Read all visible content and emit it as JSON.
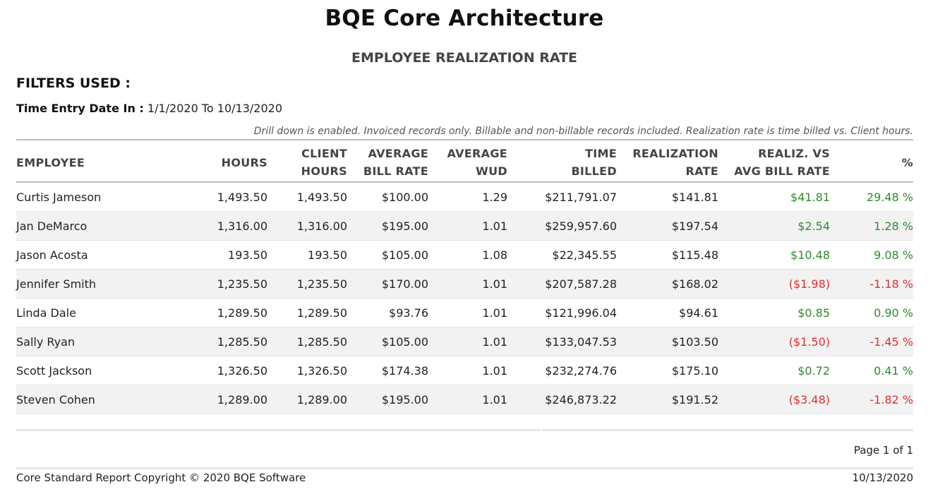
{
  "header": {
    "company": "BQE Core Architecture",
    "report_title": "EMPLOYEE REALIZATION RATE"
  },
  "filters": {
    "title": "FILTERS USED :",
    "label": "Time Entry Date In :",
    "value": "1/1/2020 To 10/13/2020"
  },
  "note": "Drill down is enabled. Invoiced records only. Billable and non-billable records included. Realization rate is time billed vs. Client hours.",
  "table": {
    "columns": [
      {
        "line1": "EMPLOYEE",
        "line2": ""
      },
      {
        "line1": "HOURS",
        "line2": ""
      },
      {
        "line1": "CLIENT",
        "line2": "HOURS"
      },
      {
        "line1": "AVERAGE",
        "line2": "BILL RATE"
      },
      {
        "line1": "AVERAGE",
        "line2": "WUD"
      },
      {
        "line1": "TIME",
        "line2": "BILLED"
      },
      {
        "line1": "REALIZATION",
        "line2": "RATE"
      },
      {
        "line1": "REALIZ. VS",
        "line2": "AVG BILL RATE"
      },
      {
        "line1": "%",
        "line2": ""
      }
    ],
    "rows": [
      {
        "employee": "Curtis Jameson",
        "hours": "1,493.50",
        "client_hours": "1,493.50",
        "avg_bill_rate": "$100.00",
        "avg_wud": "1.29",
        "time_billed": "$211,791.07",
        "realization_rate": "$141.81",
        "realiz_vs_avg": "$41.81",
        "pct": "29.48 %",
        "status": "positive"
      },
      {
        "employee": "Jan DeMarco",
        "hours": "1,316.00",
        "client_hours": "1,316.00",
        "avg_bill_rate": "$195.00",
        "avg_wud": "1.01",
        "time_billed": "$259,957.60",
        "realization_rate": "$197.54",
        "realiz_vs_avg": "$2.54",
        "pct": "1.28 %",
        "status": "positive"
      },
      {
        "employee": "Jason Acosta",
        "hours": "193.50",
        "client_hours": "193.50",
        "avg_bill_rate": "$105.00",
        "avg_wud": "1.08",
        "time_billed": "$22,345.55",
        "realization_rate": "$115.48",
        "realiz_vs_avg": "$10.48",
        "pct": "9.08 %",
        "status": "positive"
      },
      {
        "employee": "Jennifer Smith",
        "hours": "1,235.50",
        "client_hours": "1,235.50",
        "avg_bill_rate": "$170.00",
        "avg_wud": "1.01",
        "time_billed": "$207,587.28",
        "realization_rate": "$168.02",
        "realiz_vs_avg": "($1.98)",
        "pct": "-1.18 %",
        "status": "negative"
      },
      {
        "employee": "Linda Dale",
        "hours": "1,289.50",
        "client_hours": "1,289.50",
        "avg_bill_rate": "$93.76",
        "avg_wud": "1.01",
        "time_billed": "$121,996.04",
        "realization_rate": "$94.61",
        "realiz_vs_avg": "$0.85",
        "pct": "0.90 %",
        "status": "positive"
      },
      {
        "employee": "Sally Ryan",
        "hours": "1,285.50",
        "client_hours": "1,285.50",
        "avg_bill_rate": "$105.00",
        "avg_wud": "1.01",
        "time_billed": "$133,047.53",
        "realization_rate": "$103.50",
        "realiz_vs_avg": "($1.50)",
        "pct": "-1.45 %",
        "status": "negative"
      },
      {
        "employee": "Scott Jackson",
        "hours": "1,326.50",
        "client_hours": "1,326.50",
        "avg_bill_rate": "$174.38",
        "avg_wud": "1.01",
        "time_billed": "$232,274.76",
        "realization_rate": "$175.10",
        "realiz_vs_avg": "$0.72",
        "pct": "0.41 %",
        "status": "positive"
      },
      {
        "employee": "Steven Cohen",
        "hours": "1,289.00",
        "client_hours": "1,289.00",
        "avg_bill_rate": "$195.00",
        "avg_wud": "1.01",
        "time_billed": "$246,873.22",
        "realization_rate": "$191.52",
        "realiz_vs_avg": "($3.48)",
        "pct": "-1.82 %",
        "status": "negative"
      }
    ]
  },
  "footer": {
    "page": "Page 1 of 1",
    "copyright": "Core Standard Report Copyright © 2020 BQE Software",
    "date": "10/13/2020"
  },
  "colors": {
    "positive": "#2e8b2e",
    "negative": "#e03030"
  }
}
